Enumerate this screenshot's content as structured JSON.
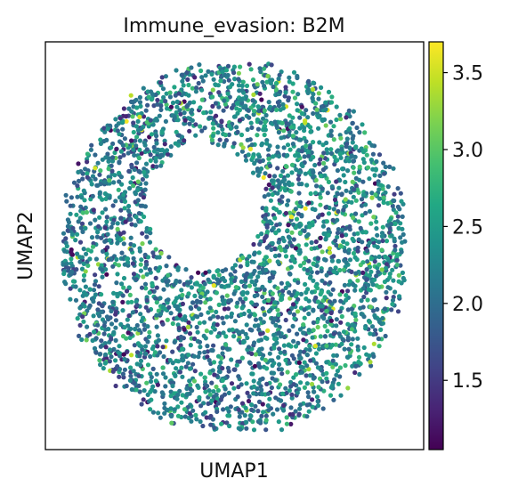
{
  "chart_data": {
    "type": "scatter",
    "title": "Immune_evasion: B2M",
    "xlabel": "UMAP1",
    "ylabel": "UMAP2",
    "x_ticks_shown": false,
    "y_ticks_shown": false,
    "grid": false,
    "shape": "ring",
    "point_count_approx": 3400,
    "value_distribution": {
      "min": 1.05,
      "max": 3.7,
      "typical_range": [
        1.7,
        2.8
      ]
    },
    "colorbar": {
      "colormap": "viridis",
      "vmin": 1.05,
      "vmax": 3.7,
      "ticks": [
        1.5,
        2.0,
        2.5,
        3.0,
        3.5
      ],
      "tick_labels": [
        "1.5",
        "2.0",
        "2.5",
        "3.0",
        "3.5"
      ],
      "position": "right"
    }
  }
}
